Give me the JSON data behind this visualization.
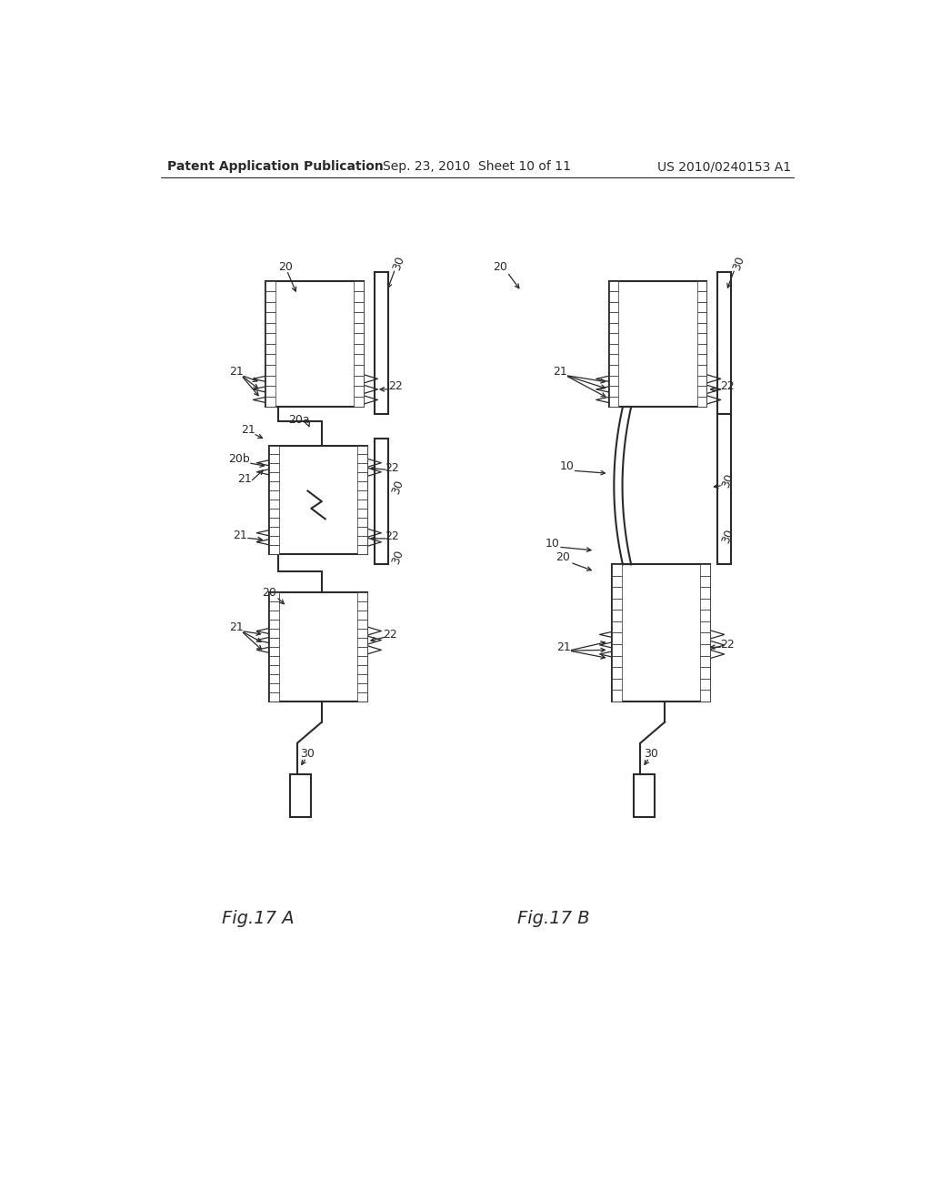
{
  "background_color": "#ffffff",
  "header_left": "Patent Application Publication",
  "header_center": "Sep. 23, 2010  Sheet 10 of 11",
  "header_right": "US 2010/0240153 A1",
  "fig_a_label": "Fig.17 A",
  "fig_b_label": "Fig.17 B",
  "line_color": "#2a2a2a",
  "lw_main": 1.5,
  "lw_thin": 0.9,
  "lw_hatch": 0.6,
  "label_fontsize": 9,
  "header_fontsize": 10
}
